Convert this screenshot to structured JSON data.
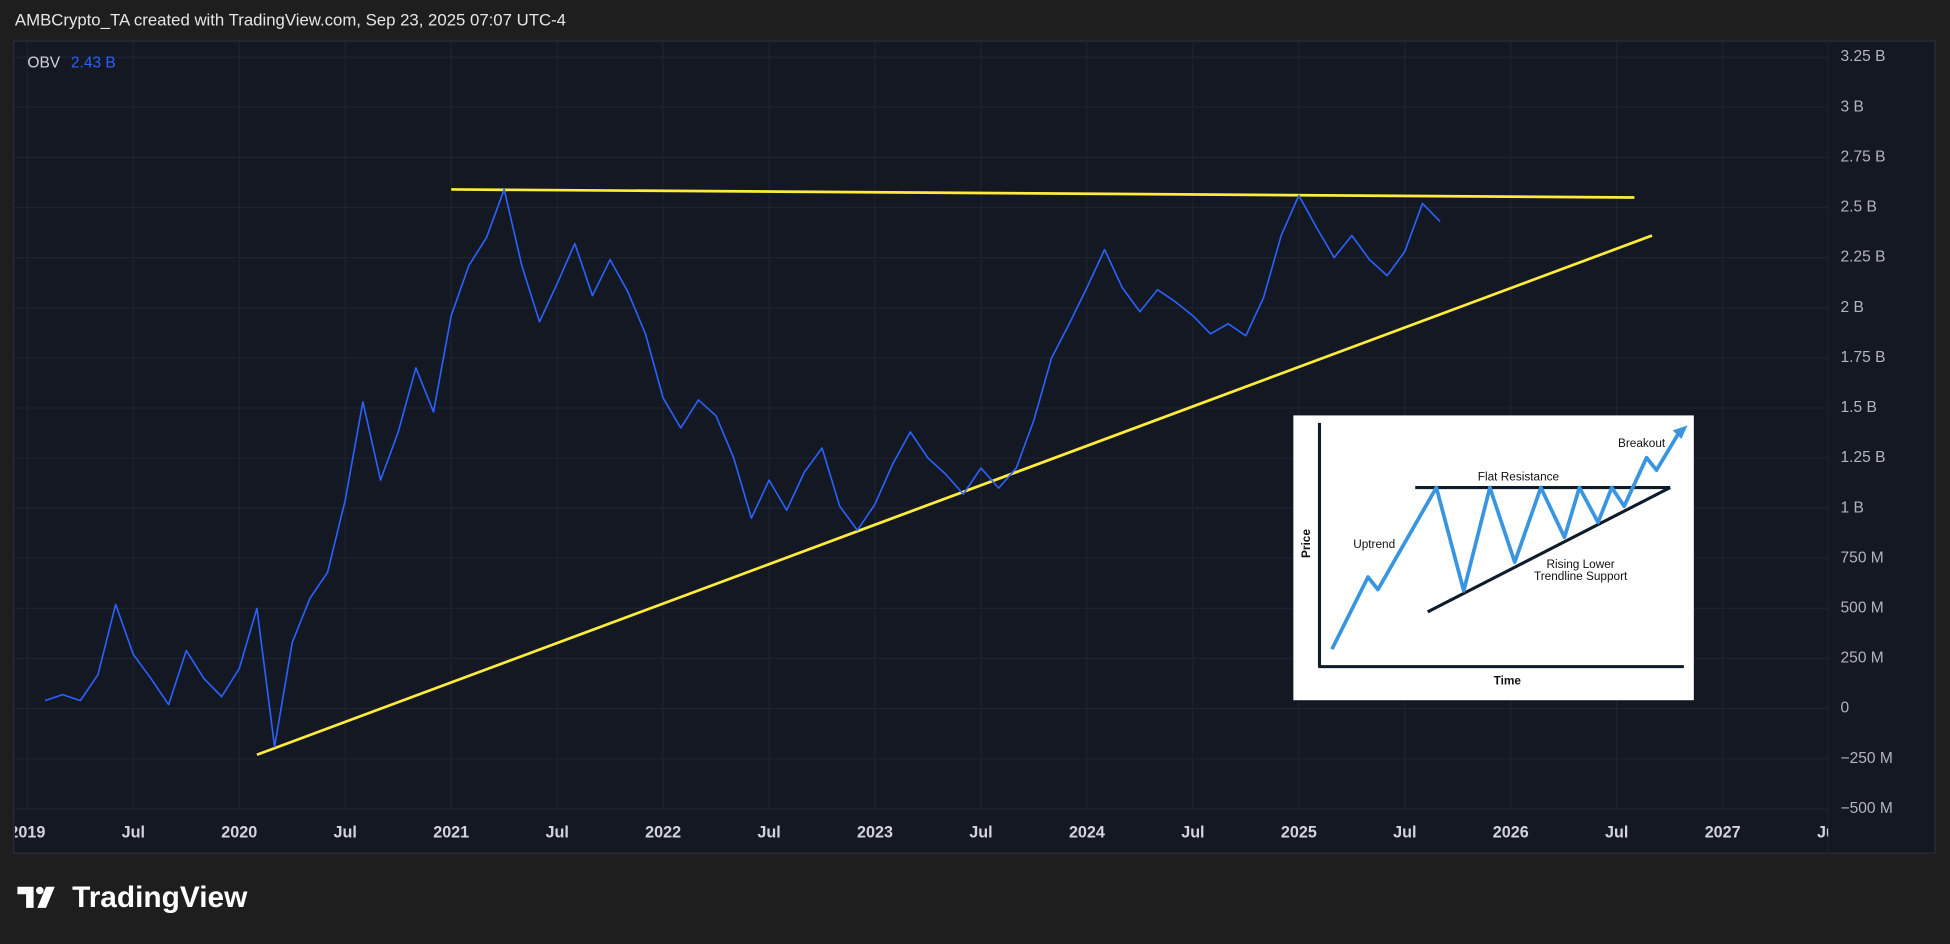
{
  "header": {
    "text": "AMBCrypto_TA created with TradingView.com, Sep 23, 2025 07:07 UTC-4"
  },
  "chart_data": {
    "type": "line",
    "legend_value": "2.43 B",
    "x": [
      "2019-02",
      "2019-03",
      "2019-04",
      "2019-05",
      "2019-06",
      "2019-07",
      "2019-08",
      "2019-09",
      "2019-10",
      "2019-11",
      "2019-12",
      "2020-01",
      "2020-02",
      "2020-03",
      "2020-04",
      "2020-05",
      "2020-06",
      "2020-07",
      "2020-08",
      "2020-09",
      "2020-10",
      "2020-11",
      "2020-12",
      "2021-01",
      "2021-02",
      "2021-03",
      "2021-04",
      "2021-05",
      "2021-06",
      "2021-07",
      "2021-08",
      "2021-09",
      "2021-10",
      "2021-11",
      "2021-12",
      "2022-01",
      "2022-02",
      "2022-03",
      "2022-04",
      "2022-05",
      "2022-06",
      "2022-07",
      "2022-08",
      "2022-09",
      "2022-10",
      "2022-11",
      "2022-12",
      "2023-01",
      "2023-02",
      "2023-03",
      "2023-04",
      "2023-05",
      "2023-06",
      "2023-07",
      "2023-08",
      "2023-09",
      "2023-10",
      "2023-11",
      "2023-12",
      "2024-01",
      "2024-02",
      "2024-03",
      "2024-04",
      "2024-05",
      "2024-06",
      "2024-07",
      "2024-08",
      "2024-09",
      "2024-10",
      "2024-11",
      "2024-12",
      "2025-01",
      "2025-02",
      "2025-03",
      "2025-04",
      "2025-05",
      "2025-06",
      "2025-07",
      "2025-08",
      "2025-09"
    ],
    "series": [
      {
        "name": "OBV",
        "color": "#2962ff",
        "values": [
          0.04,
          0.07,
          0.04,
          0.17,
          0.52,
          0.27,
          0.15,
          0.02,
          0.29,
          0.15,
          0.06,
          0.2,
          0.5,
          -0.19,
          0.33,
          0.55,
          0.68,
          1.04,
          1.53,
          1.14,
          1.38,
          1.7,
          1.48,
          1.96,
          2.21,
          2.35,
          2.59,
          2.21,
          1.93,
          2.12,
          2.32,
          2.06,
          2.24,
          2.08,
          1.87,
          1.55,
          1.4,
          1.54,
          1.46,
          1.25,
          0.95,
          1.14,
          0.99,
          1.18,
          1.3,
          1.01,
          0.89,
          1.02,
          1.22,
          1.38,
          1.25,
          1.17,
          1.07,
          1.2,
          1.1,
          1.2,
          1.44,
          1.75,
          1.92,
          2.1,
          2.29,
          2.1,
          1.98,
          2.09,
          2.03,
          1.96,
          1.87,
          1.92,
          1.86,
          2.05,
          2.36,
          2.56,
          2.4,
          2.25,
          2.36,
          2.24,
          2.16,
          2.28,
          2.52,
          2.43
        ]
      }
    ],
    "trendlines": [
      {
        "color": "#ffeb3b",
        "x": [
          "2021-01",
          "2026-08"
        ],
        "y": [
          2.59,
          2.55
        ]
      },
      {
        "color": "#ffeb3b",
        "x": [
          "2020-02",
          "2026-09"
        ],
        "y": [
          -0.23,
          2.36
        ]
      }
    ],
    "xlim": [
      "2018-12",
      "2027-07"
    ],
    "xticks": [
      {
        "value": "2019-01",
        "label": "2019"
      },
      {
        "value": "2019-07",
        "label": "Jul"
      },
      {
        "value": "2020-01",
        "label": "2020"
      },
      {
        "value": "2020-07",
        "label": "Jul"
      },
      {
        "value": "2021-01",
        "label": "2021"
      },
      {
        "value": "2021-07",
        "label": "Jul"
      },
      {
        "value": "2022-01",
        "label": "2022"
      },
      {
        "value": "2022-07",
        "label": "Jul"
      },
      {
        "value": "2023-01",
        "label": "2023"
      },
      {
        "value": "2023-07",
        "label": "Jul"
      },
      {
        "value": "2024-01",
        "label": "2024"
      },
      {
        "value": "2024-07",
        "label": "Jul"
      },
      {
        "value": "2025-01",
        "label": "2025"
      },
      {
        "value": "2025-07",
        "label": "Jul"
      },
      {
        "value": "2026-01",
        "label": "2026"
      },
      {
        "value": "2026-07",
        "label": "Jul"
      },
      {
        "value": "2027-01",
        "label": "2027"
      },
      {
        "value": "2027-07",
        "label": "Jul"
      }
    ],
    "ylim": [
      -0.51,
      3.33
    ],
    "yticks": [
      {
        "value": 3.25,
        "label": "3.25 B"
      },
      {
        "value": 3,
        "label": "3 B"
      },
      {
        "value": 2.75,
        "label": "2.75 B"
      },
      {
        "value": 2.5,
        "label": "2.5 B"
      },
      {
        "value": 2.25,
        "label": "2.25 B"
      },
      {
        "value": 2,
        "label": "2 B"
      },
      {
        "value": 1.75,
        "label": "1.75 B"
      },
      {
        "value": 1.5,
        "label": "1.5 B"
      },
      {
        "value": 1.25,
        "label": "1.25 B"
      },
      {
        "value": 1,
        "label": "1 B"
      },
      {
        "value": 0.75,
        "label": "750 M"
      },
      {
        "value": 0.5,
        "label": "500 M"
      },
      {
        "value": 0.25,
        "label": "250 M"
      },
      0,
      {
        "value": -0.25,
        "label": "−250 M"
      },
      {
        "value": -0.5,
        "label": "−500 M"
      }
    ],
    "grid": true
  },
  "inset": {
    "price": "Price",
    "time": "Time",
    "uptrend": "Uptrend",
    "resistance": "Flat Resistance",
    "breakout": "Breakout",
    "support_1": "Rising Lower",
    "support_2": "Trendline Support"
  },
  "footer": {
    "brand": "TradingView"
  }
}
